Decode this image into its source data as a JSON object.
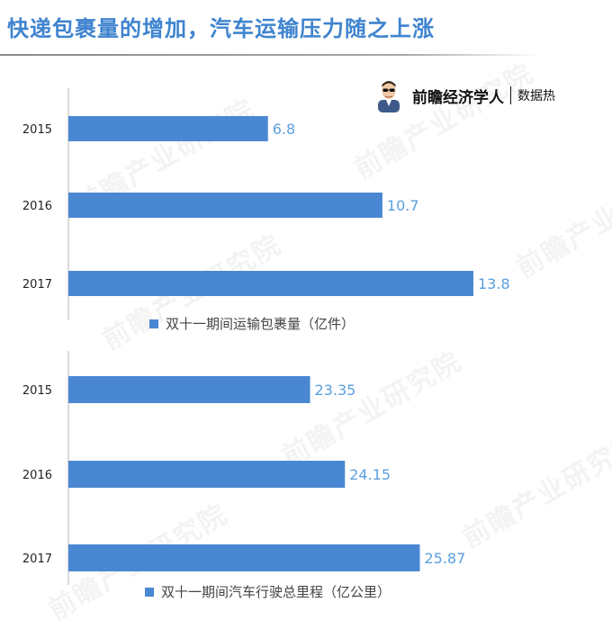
{
  "header": {
    "title": "快递包裹量的增加，汽车运输压力随之上涨"
  },
  "brand": {
    "name": "前瞻经济学人",
    "tag": "数据热",
    "avatar_icon": "economist-avatar-icon"
  },
  "watermark": {
    "text": "前瞻产业研究院"
  },
  "colors": {
    "title": "#3f84cf",
    "bar": "#4a87d3",
    "value_label": "#5b9fde",
    "axis": "#b7b7b7"
  },
  "chart_data": [
    {
      "type": "bar",
      "orientation": "horizontal",
      "categories": [
        "2015",
        "2016",
        "2017"
      ],
      "series": [
        {
          "name": "双十一期间运输包裹量（亿件）",
          "values": [
            6.8,
            10.7,
            13.8
          ]
        }
      ],
      "value_labels": [
        "6.8",
        "10.7",
        "13.8"
      ],
      "xlim": [
        0,
        18.4
      ],
      "legend_position": "bottom-center",
      "grid": false
    },
    {
      "type": "bar",
      "orientation": "horizontal",
      "categories": [
        "2015",
        "2016",
        "2017"
      ],
      "series": [
        {
          "name": "双十一期间汽车行驶总里程（亿公里）",
          "values": [
            23.35,
            24.15,
            25.87
          ]
        }
      ],
      "value_labels": [
        "23.35",
        "24.15",
        "25.87"
      ],
      "xlim": [
        17.8,
        30.2
      ],
      "legend_position": "bottom-center",
      "grid": false
    }
  ]
}
